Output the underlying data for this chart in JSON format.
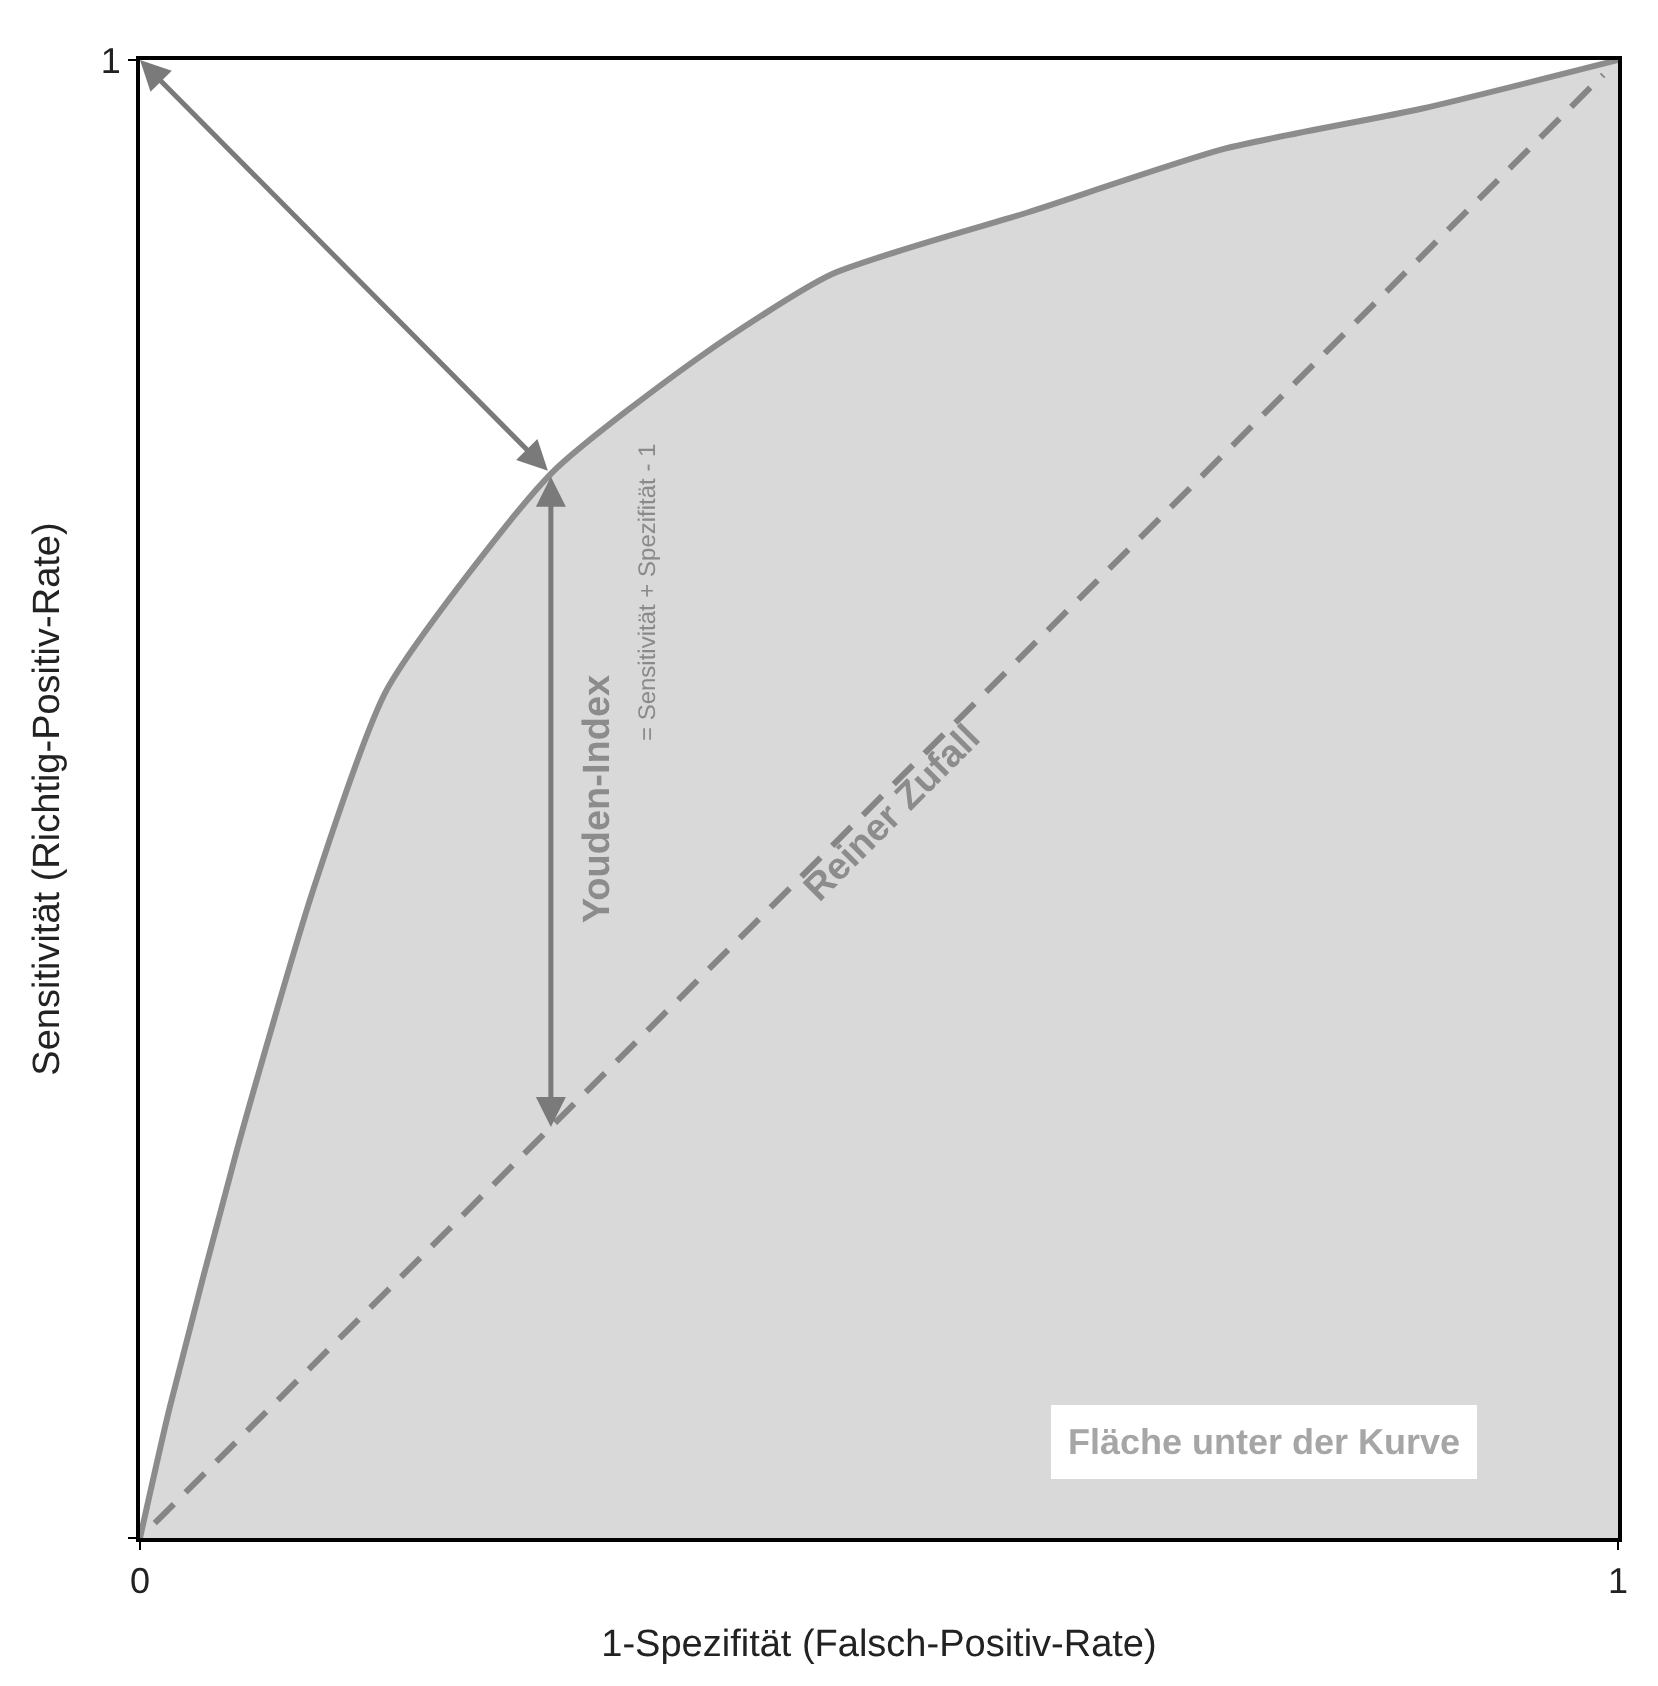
{
  "chart_data": {
    "type": "area",
    "xlabel": "1-Spezifität (Falsch-Positiv-Rate)",
    "ylabel": "Sensitivität (Richtig-Positiv-Rate)",
    "xlim": [
      0,
      1
    ],
    "ylim": [
      0,
      1
    ],
    "xticks": [
      0,
      1
    ],
    "yticks": [
      {
        "value": 0,
        "label": null
      },
      1
    ],
    "series": [
      {
        "color": "#8c8c8c",
        "x": [
          0,
          0.02,
          0.066,
          0.117,
          0.167,
          0.278,
          0.38,
          0.468,
          0.601,
          0.734,
          0.867,
          1
        ],
        "values": [
          0,
          0.088,
          0.264,
          0.438,
          0.574,
          0.72,
          0.8,
          0.855,
          0.897,
          0.94,
          0.967,
          1
        ]
      },
      {
        "type": "line",
        "color": "#858585",
        "line_style": "dashed",
        "x": [
          0.01,
          0.26,
          0.51,
          0.76,
          0.99
        ],
        "values": [
          0.01,
          0.26,
          0.51,
          0.76,
          0.99
        ]
      }
    ],
    "annotations": [
      "Youden-Index",
      "= Sensitivität + Spezifität - 1",
      "Reiner Zufall",
      "Fläche unter der Kurve"
    ]
  }
}
